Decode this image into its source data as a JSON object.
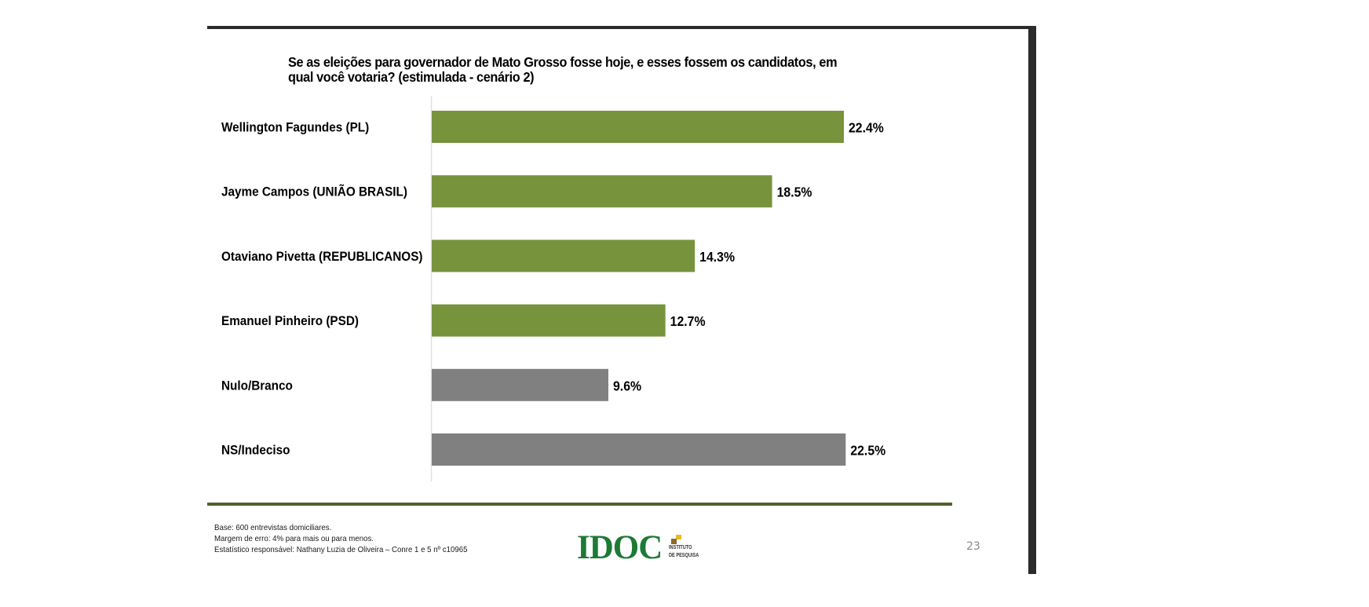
{
  "slide": {
    "page_number": "23",
    "footer": {
      "lines": [
        "Base: 600 entrevistas domiciliares.",
        "Margem de erro: 4% para mais ou para menos.",
        "Estatístico responsável: Nathany Luzia de Oliveira – Conre 1 e 5 nº c10965"
      ]
    },
    "logo": {
      "wordmark": "IDOC",
      "sub_line1": "INSTITUTO",
      "sub_line2": "DE PESQUISA"
    },
    "colors": {
      "candidate_bar": "#77933c",
      "other_bar": "#808080",
      "rule": "#4f6228",
      "border": "#2b2b2b"
    }
  },
  "chart_data": {
    "type": "bar",
    "orientation": "horizontal",
    "title": "Se as eleições para governador de Mato Grosso fosse hoje, e esses fossem os candidatos, em qual você votaria? (estimulada - cenário 2)",
    "xlabel": "",
    "ylabel": "",
    "xlim": [
      0,
      25
    ],
    "grid": false,
    "unit": "%",
    "categories": [
      "Wellington Fagundes (PL)",
      "Jayme Campos (UNIÃO BRASIL)",
      "Otaviano Pivetta (REPUBLICANOS)",
      "Emanuel Pinheiro (PSD)",
      "Nulo/Branco",
      "NS/Indeciso"
    ],
    "values": [
      22.4,
      18.5,
      14.3,
      12.7,
      9.6,
      22.5
    ],
    "value_labels": [
      "22.4%",
      "18.5%",
      "14.3%",
      "12.7%",
      "9.6%",
      "22.5%"
    ],
    "bar_groups": [
      "candidate",
      "candidate",
      "candidate",
      "candidate",
      "other",
      "other"
    ]
  }
}
